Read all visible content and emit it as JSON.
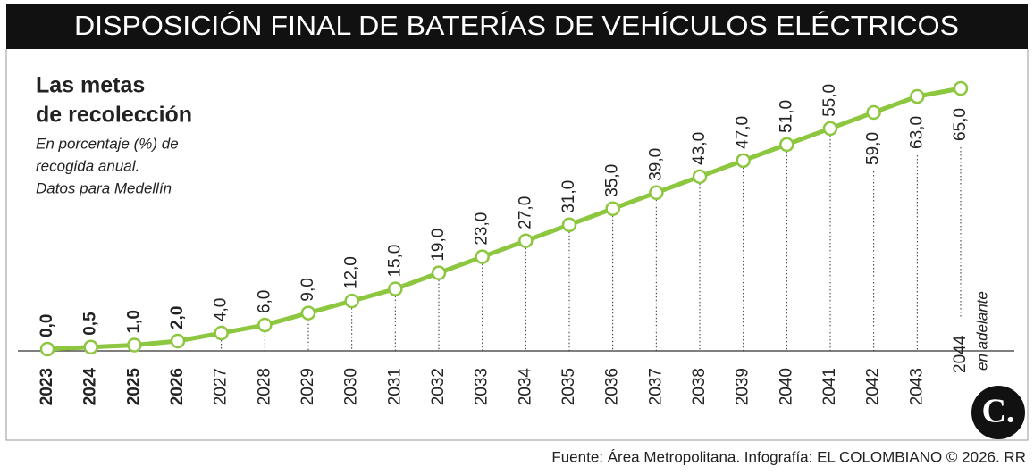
{
  "title": "DISPOSICIÓN FINAL DE BATERÍAS DE VEHÍCULOS ELÉCTRICOS",
  "chart_data": {
    "type": "line",
    "subtitle_lines": [
      "Las metas",
      "de recolección"
    ],
    "note_lines": [
      "En porcentaje (%) de",
      "recogida anual.",
      "Datos para Medellín"
    ],
    "categories": [
      "2023",
      "2024",
      "2025",
      "2026",
      "2027",
      "2028",
      "2029",
      "2030",
      "2031",
      "2032",
      "2033",
      "2034",
      "2035",
      "2036",
      "2037",
      "2038",
      "2039",
      "2040",
      "2041",
      "2042",
      "2043",
      "2044"
    ],
    "last_category_note": "en adelante",
    "values": [
      0,
      0.5,
      1,
      2,
      4,
      6,
      9,
      12,
      15,
      19,
      23,
      27,
      31,
      35,
      39,
      43,
      47,
      51,
      55,
      59,
      63,
      65
    ],
    "value_labels": [
      "0,0",
      "0,5",
      "1,0",
      "2,0",
      "4,0",
      "6,0",
      "9,0",
      "12,0",
      "15,0",
      "19,0",
      "23,0",
      "27,0",
      "31,0",
      "35,0",
      "39,0",
      "43,0",
      "47,0",
      "51,0",
      "55,0",
      "59,0",
      "63,0",
      "65,0"
    ],
    "color": "#8dc63f",
    "ylim": [
      0,
      65
    ]
  },
  "logo": "C.",
  "source": "Fuente: Área Metropolitana. Infografía: EL COLOMBIANO © 2026. RR"
}
